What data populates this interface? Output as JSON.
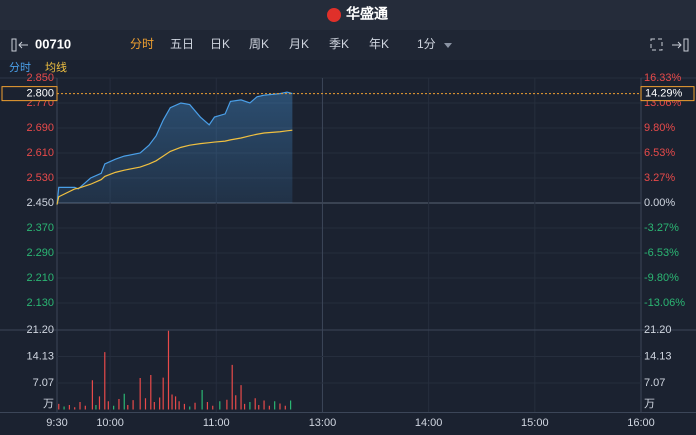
{
  "header": {
    "logo": "华盛通",
    "code": "00710",
    "tabs": [
      "分时",
      "五日",
      "日K",
      "周K",
      "月K",
      "季K",
      "年K"
    ],
    "interval": "1分",
    "legend": [
      "分时",
      "均线"
    ]
  },
  "chart_data": {
    "type": "line",
    "x": [
      0,
      1,
      10,
      12,
      19,
      25,
      27,
      33,
      38,
      47,
      52,
      56,
      60,
      64,
      70,
      75,
      81,
      86,
      89,
      95,
      98,
      104,
      109,
      113,
      117,
      126,
      130,
      133
    ],
    "xlim": [
      0,
      330
    ],
    "xticks": [
      {
        "value": 0,
        "label": "9:30"
      },
      {
        "value": 30,
        "label": "10:00"
      },
      {
        "value": 90,
        "label": "11:00"
      },
      {
        "value": 150,
        "label": "13:00"
      },
      {
        "value": 210,
        "label": "14:00"
      },
      {
        "value": 270,
        "label": "15:00"
      },
      {
        "value": 330,
        "label": "16:00"
      }
    ],
    "series": [
      {
        "name": "分时",
        "color": "#4a9fe8",
        "values": [
          2.445,
          2.5,
          2.5,
          2.495,
          2.53,
          2.545,
          2.575,
          2.59,
          2.6,
          2.61,
          2.635,
          2.665,
          2.715,
          2.755,
          2.77,
          2.765,
          2.725,
          2.7,
          2.725,
          2.735,
          2.775,
          2.78,
          2.77,
          2.79,
          2.795,
          2.8,
          2.805,
          2.8
        ]
      },
      {
        "name": "均线",
        "color": "#f0c040",
        "values": [
          2.445,
          2.47,
          2.495,
          2.497,
          2.51,
          2.525,
          2.535,
          2.548,
          2.555,
          2.565,
          2.575,
          2.585,
          2.6,
          2.615,
          2.628,
          2.635,
          2.64,
          2.643,
          2.645,
          2.648,
          2.652,
          2.658,
          2.665,
          2.67,
          2.674,
          2.678,
          2.681,
          2.683
        ]
      }
    ],
    "ylim": [
      2.08,
      2.85
    ],
    "yticks": [
      {
        "value": 2.85,
        "label": "2.850"
      },
      {
        "value": 2.77,
        "label": "2.770"
      },
      {
        "value": 2.69,
        "label": "2.690"
      },
      {
        "value": 2.61,
        "label": "2.610"
      },
      {
        "value": 2.53,
        "label": "2.530"
      },
      {
        "value": 2.45,
        "label": "2.450"
      },
      {
        "value": 2.37,
        "label": "2.370"
      },
      {
        "value": 2.29,
        "label": "2.290"
      },
      {
        "value": 2.21,
        "label": "2.210"
      },
      {
        "value": 2.13,
        "label": "2.130"
      }
    ],
    "y2lim": [
      -15.1,
      16.33
    ],
    "y2ticks": [
      {
        "value": 16.33,
        "label": "16.33%"
      },
      {
        "value": 13.06,
        "label": "13.06%"
      },
      {
        "value": 9.8,
        "label": "9.80%"
      },
      {
        "value": 6.53,
        "label": "6.53%"
      },
      {
        "value": 3.27,
        "label": "3.27%"
      },
      {
        "value": 0,
        "label": "0.00%"
      },
      {
        "value": -3.27,
        "label": "-3.27%"
      },
      {
        "value": -6.53,
        "label": "-6.53%"
      },
      {
        "value": -9.8,
        "label": "-9.80%"
      },
      {
        "value": -13.06,
        "label": "-13.06%"
      }
    ],
    "last_price": {
      "value": 2.8,
      "label": "2.800"
    },
    "last_change": {
      "value": 14.29,
      "label": "14.29%"
    },
    "grid": true,
    "volume": {
      "unit": "万",
      "ylim": [
        0,
        21.2
      ],
      "yticks": [
        {
          "value": 21.2,
          "label": "21.20"
        },
        {
          "value": 14.13,
          "label": "14.13"
        },
        {
          "value": 7.07,
          "label": "7.07"
        }
      ],
      "x": [
        1,
        4,
        7,
        10,
        13,
        16,
        20,
        22,
        24,
        27,
        29,
        32,
        35,
        38,
        40,
        43,
        47,
        50,
        53,
        55,
        58,
        60,
        63,
        65,
        67,
        69,
        72,
        75,
        78,
        82,
        85,
        88,
        92,
        96,
        99,
        101,
        104,
        106,
        109,
        112,
        114,
        117,
        120,
        123,
        126,
        129,
        132
      ],
      "values": [
        1.5,
        0.8,
        1.2,
        0.6,
        2.0,
        1.0,
        7.8,
        1.2,
        3.5,
        15.3,
        2.2,
        1.0,
        2.8,
        4.2,
        1.2,
        2.5,
        8.4,
        3.0,
        9.2,
        2.0,
        3.2,
        8.5,
        21.0,
        4.0,
        3.5,
        2.2,
        1.5,
        0.8,
        1.8,
        5.2,
        2.0,
        1.0,
        2.2,
        2.6,
        11.9,
        3.8,
        6.5,
        1.5,
        2.0,
        3.0,
        1.2,
        2.4,
        1.0,
        2.2,
        1.6,
        1.0,
        2.4
      ],
      "colors": [
        "#e84a4a",
        "#2bb673",
        "#e84a4a",
        "#e84a4a",
        "#e84a4a",
        "#e84a4a",
        "#e84a4a",
        "#2bb673",
        "#e84a4a",
        "#e84a4a",
        "#e84a4a",
        "#2bb673",
        "#e84a4a",
        "#2bb673",
        "#e84a4a",
        "#e84a4a",
        "#e84a4a",
        "#e84a4a",
        "#e84a4a",
        "#e84a4a",
        "#e84a4a",
        "#e84a4a",
        "#e84a4a",
        "#e84a4a",
        "#e84a4a",
        "#e84a4a",
        "#e84a4a",
        "#2bb673",
        "#e84a4a",
        "#2bb673",
        "#e84a4a",
        "#e84a4a",
        "#2bb673",
        "#e84a4a",
        "#e84a4a",
        "#e84a4a",
        "#e84a4a",
        "#e84a4a",
        "#2bb673",
        "#e84a4a",
        "#e84a4a",
        "#e84a4a",
        "#e84a4a",
        "#2bb673",
        "#e84a4a",
        "#e84a4a",
        "#2bb673"
      ]
    }
  }
}
